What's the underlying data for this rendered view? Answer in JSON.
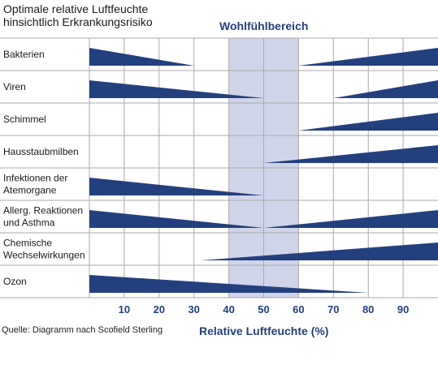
{
  "title_line1": "Optimale relative Luftfeuchte",
  "title_line2": "hinsichtlich Erkrankungsrisiko",
  "comfort_zone_label": "Wohlfühlbereich",
  "source": "Quelle: Diagramm nach Scofield Sterling",
  "colors": {
    "wedge": "#23407e",
    "zone": "#cfd4e9",
    "grid": "#a9a9a9",
    "text": "#23407e"
  },
  "chart_data": {
    "type": "bar",
    "xlabel": "Relative Luftfeuchte (%)",
    "xlim": [
      0,
      100
    ],
    "x_ticks": [
      "10",
      "20",
      "30",
      "40",
      "50",
      "60",
      "70",
      "80",
      "90"
    ],
    "comfort_zone": [
      40,
      60
    ],
    "grid": true,
    "rows": [
      {
        "label": [
          "Bakterien"
        ],
        "segments": [
          {
            "from": 0,
            "to": 30,
            "direction": "decreasing"
          },
          {
            "from": 60,
            "to": 100,
            "direction": "increasing"
          }
        ]
      },
      {
        "label": [
          "Viren"
        ],
        "segments": [
          {
            "from": 0,
            "to": 50,
            "direction": "decreasing"
          },
          {
            "from": 70,
            "to": 100,
            "direction": "increasing"
          }
        ]
      },
      {
        "label": [
          "Schimmel"
        ],
        "segments": [
          {
            "from": 60,
            "to": 100,
            "direction": "increasing"
          }
        ]
      },
      {
        "label": [
          "Hausstaubmilben"
        ],
        "segments": [
          {
            "from": 50,
            "to": 100,
            "direction": "increasing"
          }
        ]
      },
      {
        "label": [
          "Infektionen der",
          "Atemorgane"
        ],
        "segments": [
          {
            "from": 0,
            "to": 50,
            "direction": "decreasing"
          }
        ]
      },
      {
        "label": [
          "Allerg. Reaktionen",
          "und Asthma"
        ],
        "segments": [
          {
            "from": 0,
            "to": 50,
            "direction": "decreasing"
          },
          {
            "from": 50,
            "to": 100,
            "direction": "increasing"
          }
        ]
      },
      {
        "label": [
          "Chemische",
          "Wechselwirkungen"
        ],
        "segments": [
          {
            "from": 32,
            "to": 100,
            "direction": "increasing"
          }
        ]
      },
      {
        "label": [
          "Ozon"
        ],
        "segments": [
          {
            "from": 0,
            "to": 80,
            "direction": "decreasing"
          }
        ]
      }
    ]
  }
}
